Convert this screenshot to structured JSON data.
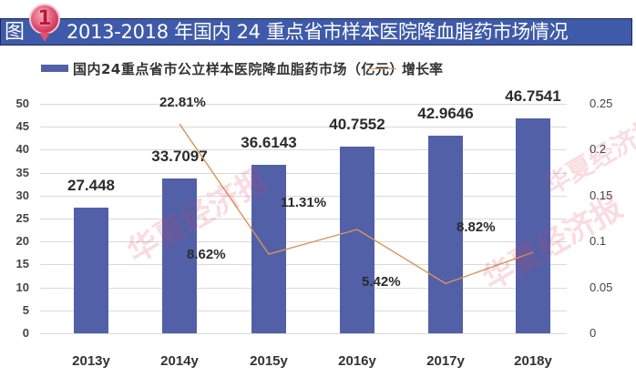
{
  "header": {
    "prefix": "图",
    "badge_number": "1",
    "title": "2013-2018 年国内 24 重点省市样本医院降血脂药市场情况"
  },
  "legend": {
    "bar_label": "国内24重点省市公立样本医院降血脂药市场（亿元）",
    "line_label": "增长率"
  },
  "watermark": "华夏经济报",
  "colors": {
    "bar": "#5260a8",
    "line": "#d8955a",
    "title_bg": "#3e5aa8"
  },
  "axes": {
    "left_ticks": [
      "50",
      "45",
      "40",
      "35",
      "30",
      "25",
      "20",
      "15",
      "10",
      "5",
      "0"
    ],
    "right_ticks": [
      "0.25",
      "0.2",
      "0.15",
      "0.1",
      "0.05",
      "0"
    ]
  },
  "chart_data": {
    "type": "bar",
    "title": "2013-2018 年国内 24 重点省市样本医院降血脂药市场情况",
    "categories": [
      "2013y",
      "2014y",
      "2015y",
      "2016y",
      "2017y",
      "2018y"
    ],
    "series": [
      {
        "name": "国内24重点省市公立样本医院降血脂药市场（亿元）",
        "type": "bar",
        "axis": "left",
        "values": [
          27.448,
          33.7097,
          36.6143,
          40.7552,
          42.9646,
          46.7541
        ],
        "labels": [
          "27.448",
          "33.7097",
          "36.6143",
          "40.7552",
          "42.9646",
          "46.7541"
        ]
      },
      {
        "name": "增长率",
        "type": "line",
        "axis": "right",
        "values": [
          null,
          0.2281,
          0.0862,
          0.1131,
          0.0542,
          0.0882
        ],
        "labels": [
          "",
          "22.81%",
          "8.62%",
          "11.31%",
          "5.42%",
          "8.82%"
        ]
      }
    ],
    "ylim_left": [
      0,
      50
    ],
    "ylim_right": [
      0,
      0.25
    ],
    "xlabel": "",
    "ylabel": "",
    "grid": true,
    "legend_position": "top"
  }
}
